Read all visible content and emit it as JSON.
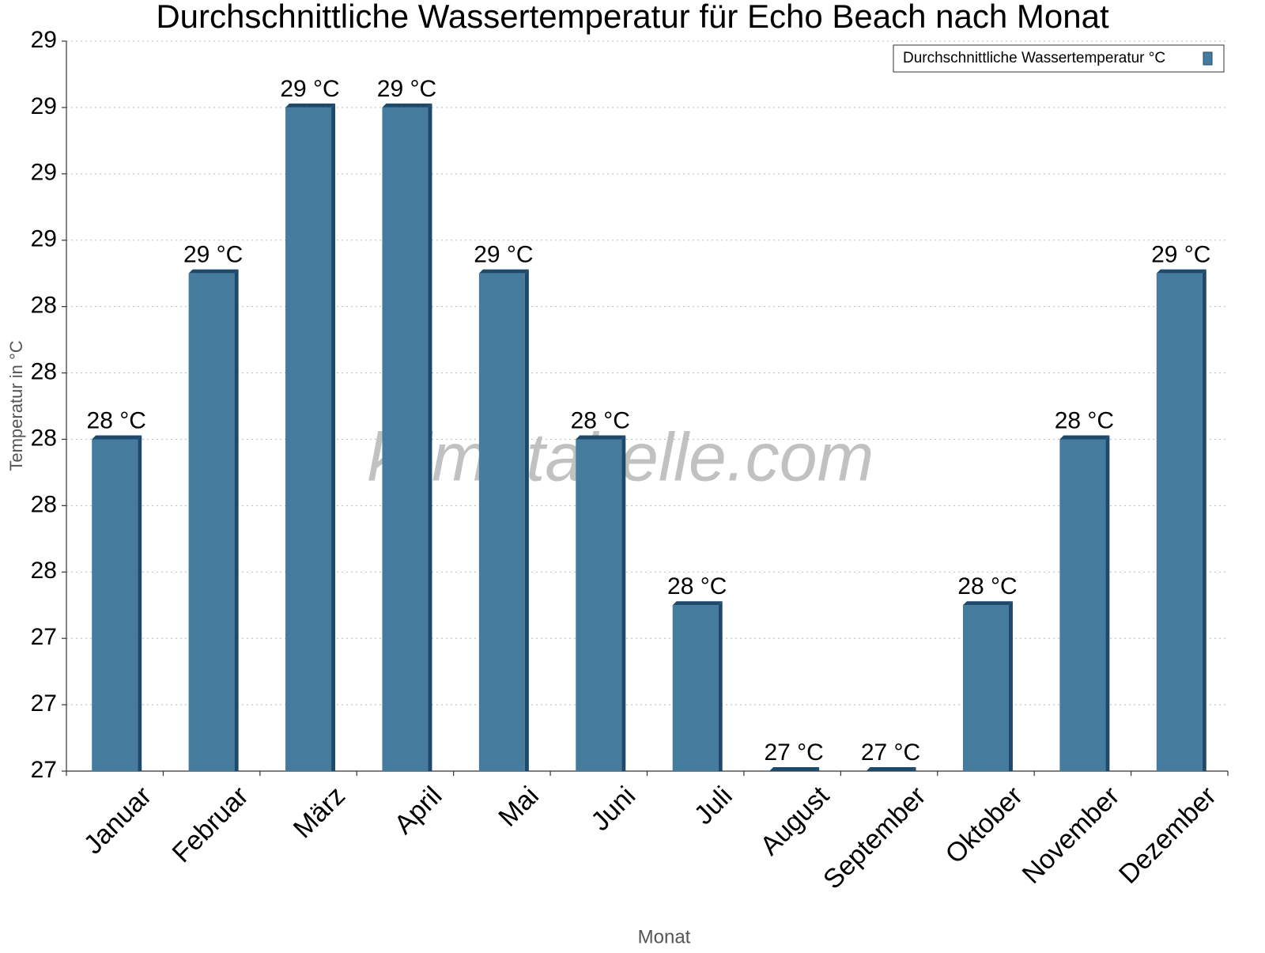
{
  "chart_data": {
    "type": "bar",
    "title": "Durchschnittliche Wassertemperatur für Echo Beach nach Monat",
    "x_label": "Monat",
    "y_label": "Temperatur in °C",
    "watermark": "klimatabelle.com",
    "categories": [
      "Januar",
      "Februar",
      "März",
      "April",
      "Mai",
      "Juni",
      "Juli",
      "August",
      "September",
      "Oktober",
      "November",
      "Dezember"
    ],
    "series": [
      {
        "name": "Durchschnittliche Wassertemperatur °C",
        "color": "#457b9d",
        "values": [
          28.0,
          28.5,
          29.0,
          29.0,
          28.5,
          28.0,
          27.5,
          27.0,
          27.0,
          27.5,
          28.0,
          28.5
        ],
        "value_labels": [
          "28 °C",
          "29 °C",
          "29 °C",
          "29 °C",
          "29 °C",
          "28 °C",
          "28 °C",
          "27 °C",
          "27 °C",
          "28 °C",
          "28 °C",
          "29 °C"
        ]
      }
    ],
    "ylim": [
      27,
      29.2
    ],
    "yticks": [
      27,
      {
        "value": 27.2,
        "label": "27"
      },
      {
        "value": 27.4,
        "label": "27"
      },
      {
        "value": 27.6,
        "label": "28"
      },
      {
        "value": 27.8,
        "label": "28"
      },
      28,
      {
        "value": 28.2,
        "label": "28"
      },
      {
        "value": 28.4,
        "label": "28"
      },
      {
        "value": 28.6,
        "label": "29"
      },
      {
        "value": 28.8,
        "label": "29"
      },
      29,
      {
        "value": 29.2,
        "label": "29"
      }
    ],
    "grid": true,
    "legend": "upper right"
  }
}
